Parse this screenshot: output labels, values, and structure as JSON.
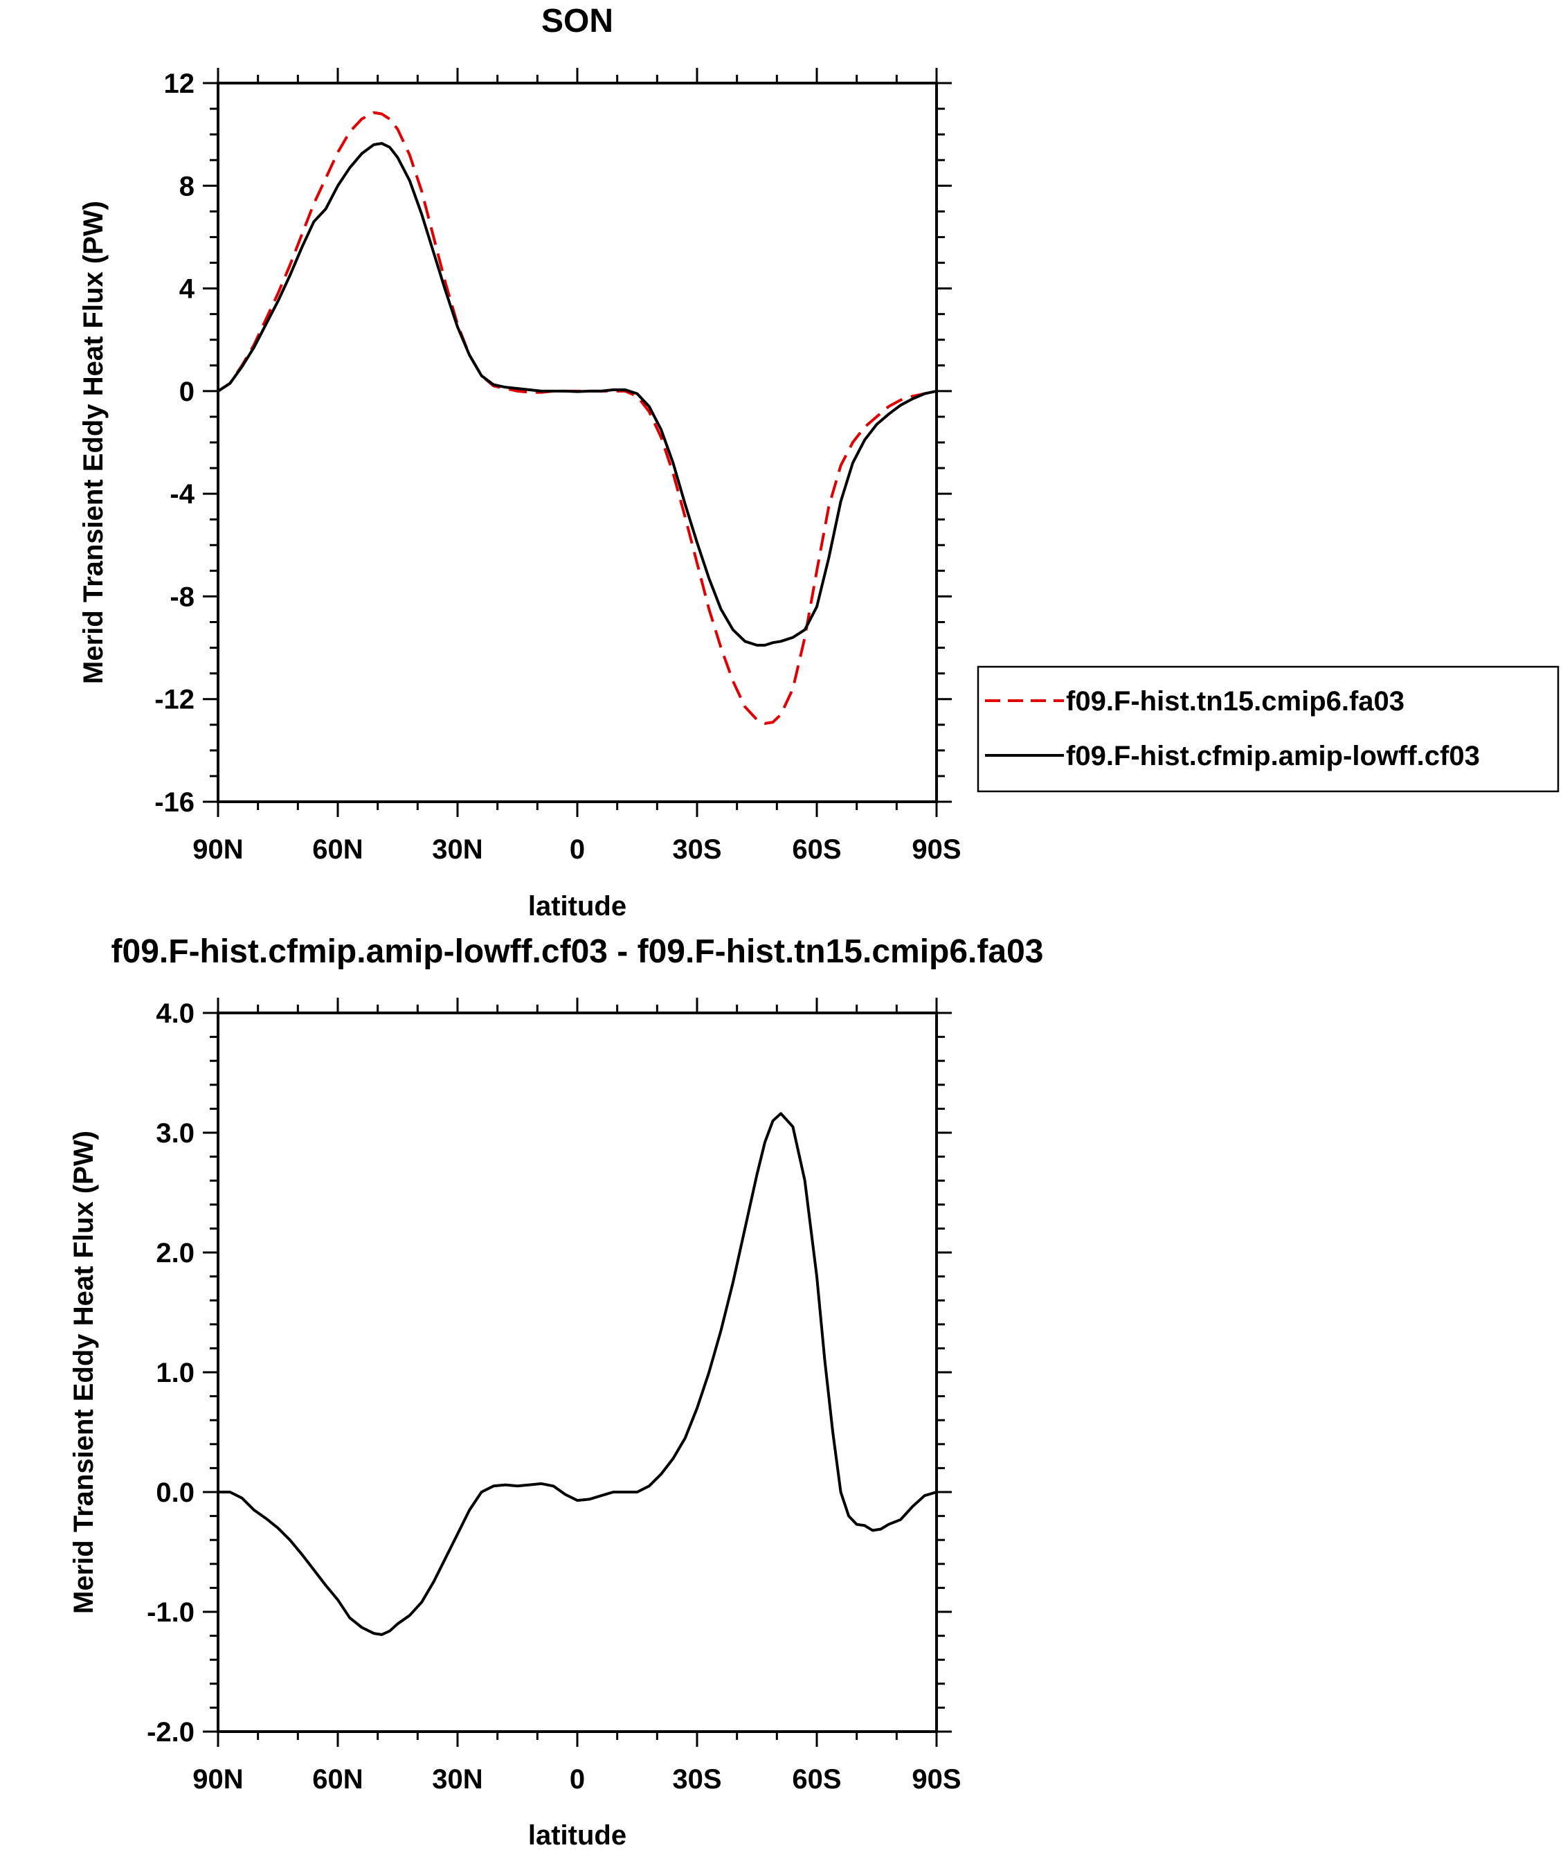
{
  "chart_data": [
    {
      "type": "line",
      "title": "SON",
      "xlabel": "latitude",
      "ylabel": "Merid Transient Eddy Heat Flux (PW)",
      "xlim": [
        90,
        -90
      ],
      "ylim": [
        -16,
        12
      ],
      "x_ticks": [
        {
          "value": 90,
          "label": "90N"
        },
        {
          "value": 60,
          "label": "60N"
        },
        {
          "value": 30,
          "label": "30N"
        },
        {
          "value": 0,
          "label": "0"
        },
        {
          "value": -30,
          "label": "30S"
        },
        {
          "value": -60,
          "label": "60S"
        },
        {
          "value": -90,
          "label": "90S"
        }
      ],
      "y_ticks": [
        {
          "value": 12,
          "label": "12"
        },
        {
          "value": 8,
          "label": "8"
        },
        {
          "value": 4,
          "label": "4"
        },
        {
          "value": 0,
          "label": "0"
        },
        {
          "value": -4,
          "label": "-4"
        },
        {
          "value": -8,
          "label": "-8"
        },
        {
          "value": -12,
          "label": "-12"
        },
        {
          "value": -16,
          "label": "-16"
        }
      ],
      "y_minor_step": 1,
      "x_minor_step": 10,
      "legend_position": "right",
      "series": [
        {
          "name": "f09.F-hist.tn15.cmip6.fa03",
          "color": "#e00000",
          "dash": "dashed",
          "x": [
            90,
            87,
            84,
            81,
            78,
            75,
            72,
            69,
            66,
            63,
            60,
            57,
            54,
            51,
            49,
            47,
            45,
            42,
            39,
            36,
            33,
            30,
            27,
            24,
            21,
            18,
            15,
            12,
            9,
            6,
            3,
            0,
            -3,
            -6,
            -9,
            -12,
            -15,
            -18,
            -21,
            -24,
            -27,
            -30,
            -33,
            -36,
            -39,
            -42,
            -45,
            -47,
            -49,
            -51,
            -54,
            -57,
            -60,
            -63,
            -66,
            -69,
            -72,
            -75,
            -78,
            -81,
            -84,
            -87,
            -90
          ],
          "y": [
            0,
            0.3,
            1.0,
            1.8,
            2.8,
            3.8,
            4.9,
            6.1,
            7.3,
            8.3,
            9.3,
            10.1,
            10.6,
            10.85,
            10.8,
            10.6,
            10.2,
            9.2,
            7.8,
            6.0,
            4.2,
            2.6,
            1.4,
            0.6,
            0.2,
            0.1,
            0.0,
            -0.05,
            -0.05,
            0.0,
            0.0,
            0.0,
            0.0,
            0.0,
            0.0,
            0.0,
            -0.2,
            -0.8,
            -1.8,
            -3.2,
            -4.9,
            -6.7,
            -8.5,
            -10.0,
            -11.3,
            -12.3,
            -12.8,
            -12.95,
            -12.9,
            -12.6,
            -11.6,
            -9.6,
            -7.0,
            -4.5,
            -2.9,
            -2.0,
            -1.4,
            -1.0,
            -0.6,
            -0.35,
            -0.2,
            -0.1,
            0
          ]
        },
        {
          "name": "f09.F-hist.cfmip.amip-lowff.cf03",
          "color": "#000000",
          "dash": "solid",
          "x": [
            90,
            87,
            84,
            81,
            78,
            75,
            72,
            69,
            66,
            63,
            60,
            57,
            54,
            51,
            49,
            47,
            45,
            42,
            39,
            36,
            33,
            30,
            27,
            24,
            21,
            18,
            15,
            12,
            9,
            6,
            3,
            0,
            -3,
            -6,
            -9,
            -12,
            -15,
            -18,
            -21,
            -24,
            -27,
            -30,
            -33,
            -36,
            -39,
            -42,
            -45,
            -47,
            -49,
            -51,
            -54,
            -57,
            -60,
            -63,
            -66,
            -69,
            -72,
            -75,
            -78,
            -81,
            -84,
            -87,
            -90
          ],
          "y": [
            0,
            0.3,
            0.95,
            1.7,
            2.6,
            3.5,
            4.5,
            5.6,
            6.6,
            7.1,
            8.0,
            8.7,
            9.25,
            9.6,
            9.65,
            9.5,
            9.1,
            8.2,
            6.9,
            5.4,
            3.9,
            2.5,
            1.4,
            0.6,
            0.25,
            0.15,
            0.1,
            0.05,
            0.0,
            0.0,
            0.0,
            -0.02,
            0.0,
            0.0,
            0.05,
            0.05,
            -0.1,
            -0.6,
            -1.5,
            -2.8,
            -4.4,
            -5.9,
            -7.3,
            -8.5,
            -9.3,
            -9.75,
            -9.9,
            -9.9,
            -9.8,
            -9.75,
            -9.6,
            -9.3,
            -8.4,
            -6.5,
            -4.3,
            -2.8,
            -1.9,
            -1.3,
            -0.9,
            -0.55,
            -0.3,
            -0.1,
            0
          ]
        }
      ]
    },
    {
      "type": "line",
      "title": "f09.F-hist.cfmip.amip-lowff.cf03 - f09.F-hist.tn15.cmip6.fa03",
      "xlabel": "latitude",
      "ylabel": "Merid Transient Eddy Heat Flux (PW)",
      "xlim": [
        90,
        -90
      ],
      "ylim": [
        -2.0,
        4.0
      ],
      "x_ticks": [
        {
          "value": 90,
          "label": "90N"
        },
        {
          "value": 60,
          "label": "60N"
        },
        {
          "value": 30,
          "label": "30N"
        },
        {
          "value": 0,
          "label": "0"
        },
        {
          "value": -30,
          "label": "30S"
        },
        {
          "value": -60,
          "label": "60S"
        },
        {
          "value": -90,
          "label": "90S"
        }
      ],
      "y_ticks": [
        {
          "value": 4.0,
          "label": "4.0"
        },
        {
          "value": 3.0,
          "label": "3.0"
        },
        {
          "value": 2.0,
          "label": "2.0"
        },
        {
          "value": 1.0,
          "label": "1.0"
        },
        {
          "value": 0.0,
          "label": "0.0"
        },
        {
          "value": -1.0,
          "label": "-1.0"
        },
        {
          "value": -2.0,
          "label": "-2.0"
        }
      ],
      "y_minor_step": 0.2,
      "x_minor_step": 10,
      "series": [
        {
          "color": "#000000",
          "dash": "solid",
          "x": [
            90,
            87,
            84,
            81,
            78,
            75,
            72,
            69,
            66,
            63,
            60,
            57,
            54,
            51,
            49,
            47,
            45,
            42,
            39,
            36,
            33,
            30,
            27,
            24,
            21,
            18,
            15,
            12,
            9,
            6,
            3,
            0,
            -3,
            -6,
            -9,
            -12,
            -15,
            -18,
            -21,
            -24,
            -27,
            -30,
            -33,
            -36,
            -39,
            -42,
            -45,
            -47,
            -49,
            -51,
            -54,
            -57,
            -60,
            -62,
            -64,
            -66,
            -68,
            -70,
            -72,
            -74,
            -76,
            -78,
            -81,
            -84,
            -87,
            -90
          ],
          "y": [
            0,
            0.0,
            -0.05,
            -0.15,
            -0.22,
            -0.3,
            -0.4,
            -0.52,
            -0.65,
            -0.78,
            -0.9,
            -1.05,
            -1.13,
            -1.18,
            -1.19,
            -1.16,
            -1.1,
            -1.03,
            -0.92,
            -0.75,
            -0.55,
            -0.35,
            -0.15,
            0.0,
            0.05,
            0.06,
            0.05,
            0.06,
            0.07,
            0.05,
            -0.02,
            -0.07,
            -0.06,
            -0.03,
            0.0,
            0.0,
            0.0,
            0.05,
            0.15,
            0.28,
            0.45,
            0.7,
            1.0,
            1.35,
            1.75,
            2.2,
            2.65,
            2.92,
            3.1,
            3.16,
            3.05,
            2.6,
            1.8,
            1.1,
            0.5,
            0.0,
            -0.2,
            -0.27,
            -0.28,
            -0.32,
            -0.31,
            -0.27,
            -0.23,
            -0.12,
            -0.03,
            0
          ]
        }
      ]
    }
  ]
}
